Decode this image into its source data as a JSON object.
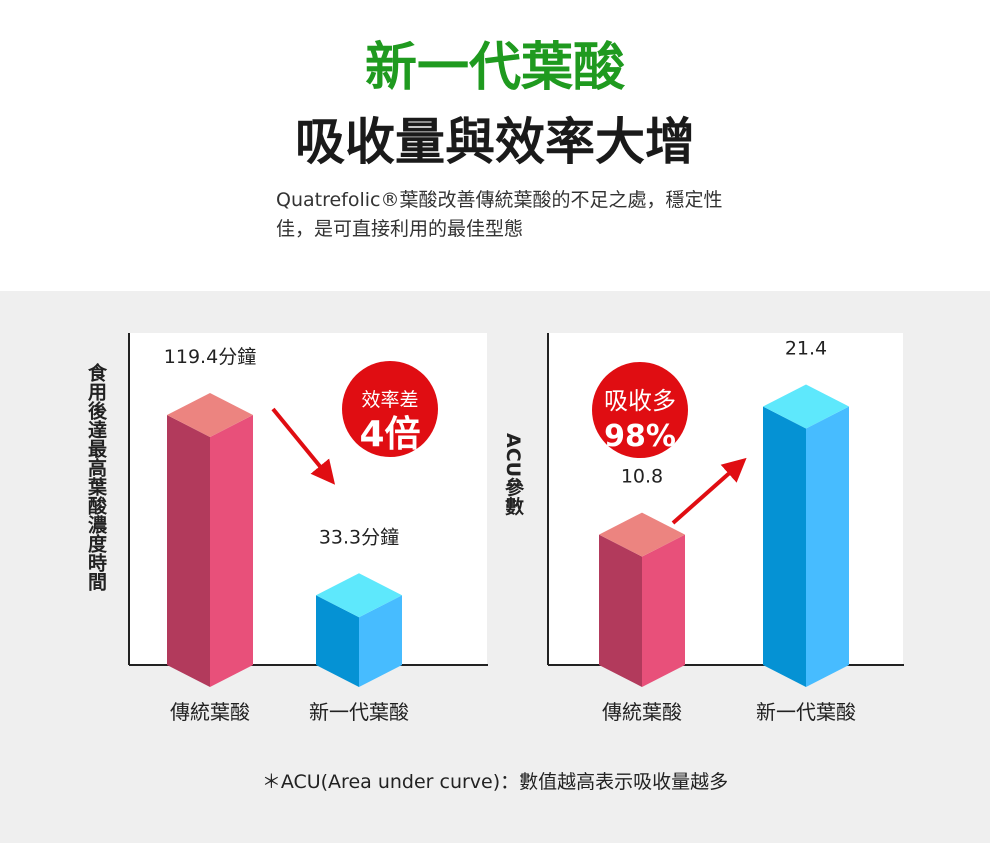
{
  "header": {
    "title": "新一代葉酸",
    "subtitle": "吸收量與效率大增",
    "description": "Quatrefolic®葉酸改善傳統葉酸的不足之處，穩定性佳，是可直接利用的最佳型態"
  },
  "footnote": "＊ACU(Area under curve)：數值越高表示吸收量越多",
  "colors": {
    "title": "#1f9a1f",
    "traditional_front": "#e8507a",
    "traditional_side": "#b23a5c",
    "traditional_top": "#ec8480",
    "new_front": "#47bcff",
    "new_side": "#0592d4",
    "new_top": "#5ee8fc",
    "badge": "#e00d12",
    "arrow": "#e00d12"
  },
  "chart_data": [
    {
      "type": "bar",
      "title": "",
      "ylabel": "食用後達最高葉酸濃度時間",
      "xlabel": "",
      "categories": [
        "傳統葉酸",
        "新一代葉酸"
      ],
      "values": [
        119.4,
        33.3
      ],
      "value_labels": [
        "119.4分鐘",
        "33.3分鐘"
      ],
      "unit": "分鐘",
      "ylim": [
        0,
        150
      ],
      "grid": false,
      "badge": {
        "line1": "效率差",
        "line2": "4倍"
      }
    },
    {
      "type": "bar",
      "title": "",
      "ylabel": "ACU參數",
      "xlabel": "",
      "categories": [
        "傳統葉酸",
        "新一代葉酸"
      ],
      "values": [
        10.8,
        21.4
      ],
      "value_labels": [
        "10.8",
        "21.4"
      ],
      "ylim": [
        0,
        26
      ],
      "grid": false,
      "badge": {
        "line1": "吸收多",
        "line2": "98%"
      }
    }
  ]
}
